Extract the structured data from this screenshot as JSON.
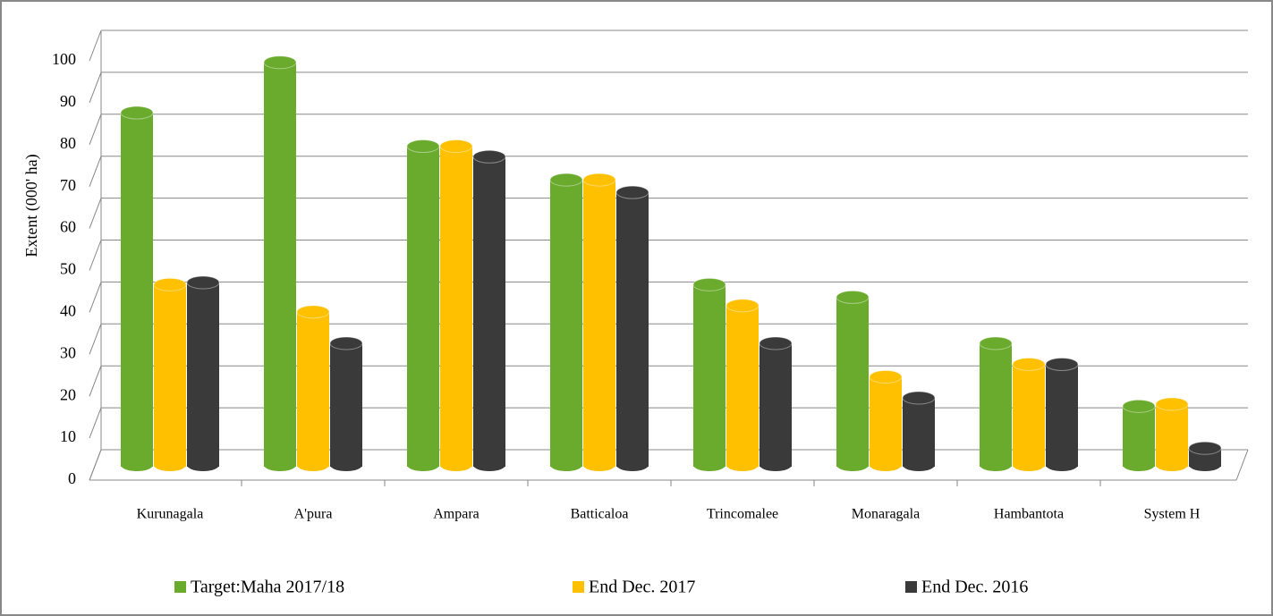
{
  "chart_data": {
    "type": "bar",
    "y_label": "Extent (000' ha)",
    "categories": [
      "Kurunagala",
      "A'pura",
      "Ampara",
      "Batticaloa",
      "Trincomalee",
      "Monaragala",
      "Hambantota",
      "System H"
    ],
    "series": [
      {
        "name": "Target:Maha 2017/18",
        "color": "#6aab2e",
        "values": [
          84,
          96,
          76,
          68,
          43,
          40,
          29,
          14
        ]
      },
      {
        "name": "End Dec. 2017",
        "color": "#ffc000",
        "values": [
          43,
          36.5,
          76,
          68,
          38,
          21,
          24,
          14.5
        ]
      },
      {
        "name": "End Dec. 2016",
        "color": "#3a3a3a",
        "values": [
          43.5,
          29,
          73.5,
          65,
          29,
          16,
          24,
          4
        ]
      }
    ],
    "ylim": [
      0,
      100
    ],
    "yticks": [
      0,
      10,
      20,
      30,
      40,
      50,
      60,
      70,
      80,
      90,
      100
    ],
    "grid": true
  }
}
